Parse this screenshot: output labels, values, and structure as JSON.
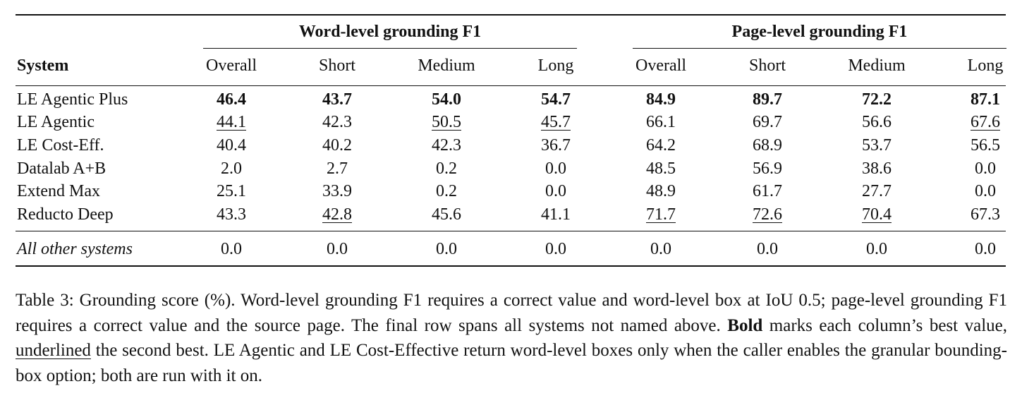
{
  "table": {
    "groups": [
      {
        "title": "Word-level grounding F1"
      },
      {
        "title": "Page-level grounding F1"
      }
    ],
    "system_header": "System",
    "column_headers": [
      "Overall",
      "Short",
      "Medium",
      "Long",
      "Overall",
      "Short",
      "Medium",
      "Long"
    ],
    "rows": [
      {
        "system": "LE Agentic Plus",
        "values": [
          "46.4",
          "43.7",
          "54.0",
          "54.7",
          "84.9",
          "89.7",
          "72.2",
          "87.1"
        ],
        "styles": [
          "b",
          "b",
          "b",
          "b",
          "b",
          "b",
          "b",
          "b"
        ]
      },
      {
        "system": "LE Agentic",
        "values": [
          "44.1",
          "42.3",
          "50.5",
          "45.7",
          "66.1",
          "69.7",
          "56.6",
          "67.6"
        ],
        "styles": [
          "u",
          "",
          "u",
          "u",
          "",
          "",
          "",
          "u"
        ]
      },
      {
        "system": "LE Cost-Eff.",
        "values": [
          "40.4",
          "40.2",
          "42.3",
          "36.7",
          "64.2",
          "68.9",
          "53.7",
          "56.5"
        ],
        "styles": [
          "",
          "",
          "",
          "",
          "",
          "",
          "",
          ""
        ]
      },
      {
        "system": "Datalab A+B",
        "values": [
          "2.0",
          "2.7",
          "0.2",
          "0.0",
          "48.5",
          "56.9",
          "38.6",
          "0.0"
        ],
        "styles": [
          "",
          "",
          "",
          "",
          "",
          "",
          "",
          ""
        ]
      },
      {
        "system": "Extend Max",
        "values": [
          "25.1",
          "33.9",
          "0.2",
          "0.0",
          "48.9",
          "61.7",
          "27.7",
          "0.0"
        ],
        "styles": [
          "",
          "",
          "",
          "",
          "",
          "",
          "",
          ""
        ]
      },
      {
        "system": "Reducto Deep",
        "values": [
          "43.3",
          "42.8",
          "45.6",
          "41.1",
          "71.7",
          "72.6",
          "70.4",
          "67.3"
        ],
        "styles": [
          "",
          "u",
          "",
          "",
          "u",
          "u",
          "u",
          ""
        ]
      }
    ],
    "footer_row": {
      "system": "All other systems",
      "values": [
        "0.0",
        "0.0",
        "0.0",
        "0.0",
        "0.0",
        "0.0",
        "0.0",
        "0.0"
      ]
    }
  },
  "caption": {
    "label": "Table 3:",
    "part1": " Grounding score (%). Word-level grounding F1 requires a correct value and word-level box at IoU 0.5; page-level grounding F1 requires a correct value and the source page. The final row spans all systems not named above. ",
    "bold_word": "Bold",
    "part2": " marks each column’s best value, ",
    "underlined_word": "underlined",
    "part3": " the second best. LE Agentic and LE Cost-Effective return word-level boxes only when the caller enables the granular bounding-box option; both are run with it on."
  }
}
